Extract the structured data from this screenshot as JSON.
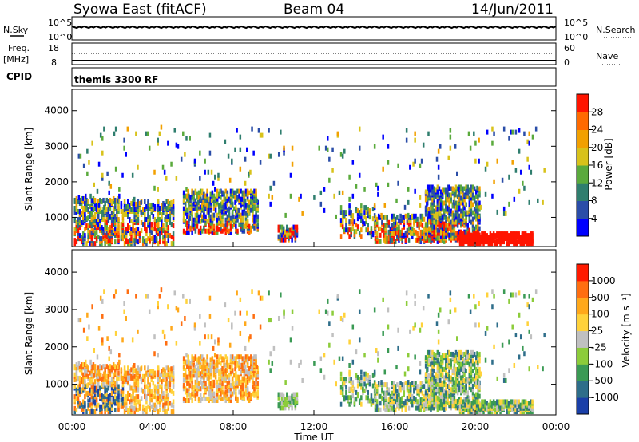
{
  "header": {
    "title": "Syowa East (fitACF)",
    "beam": "Beam 04",
    "date": "14/Jun/2011"
  },
  "panels": {
    "nsky_label": "N.Sky",
    "nsearch_label": "N.Search",
    "nsky_ticks": [
      "10^5",
      "10^0"
    ],
    "nsky_right_ticks": [
      "10^5",
      "10^0"
    ],
    "freq_label": "Freq.",
    "freq_unit": "[MHz]",
    "freq_ticks": [
      "18",
      "8"
    ],
    "nave_label": "Nave",
    "nave_ticks": [
      "60",
      "0"
    ],
    "cpid_label": "CPID",
    "cpid_value": "themis 3300 RF"
  },
  "chart_data": [
    {
      "type": "heatmap",
      "name": "power",
      "ylabel": "Slant Range [km]",
      "xlabel": "Time UT",
      "x_ticks": [
        "00:00",
        "04:00",
        "08:00",
        "12:00",
        "16:00",
        "20:00",
        "00:00"
      ],
      "xlim_hours": [
        0,
        24
      ],
      "y_ticks": [
        1000,
        2000,
        3000,
        4000
      ],
      "ylim_km": [
        180,
        4600
      ],
      "colorbar": {
        "label": "Power [dB]",
        "ticks": [
          "28",
          "24",
          "20",
          "16",
          "12",
          "8",
          "4"
        ],
        "colors": [
          "#0000ff",
          "#2a4da8",
          "#2f7e6e",
          "#5aaa3c",
          "#d8c21a",
          "#f2a000",
          "#ff6a00",
          "#ff1400"
        ]
      }
    },
    {
      "type": "heatmap",
      "name": "velocity",
      "ylabel": "Slant Range [km]",
      "xlabel": "Time UT",
      "x_ticks": [
        "00:00",
        "04:00",
        "08:00",
        "12:00",
        "16:00",
        "20:00",
        "00:00"
      ],
      "xlim_hours": [
        0,
        24
      ],
      "y_ticks": [
        1000,
        2000,
        3000,
        4000
      ],
      "ylim_km": [
        180,
        4600
      ],
      "colorbar": {
        "label": "Velocity [m s⁻¹]",
        "ticks": [
          "1000",
          "500",
          "100",
          "25",
          "-25",
          "-100",
          "-500",
          "-1000"
        ],
        "colors": [
          "#1a3fa8",
          "#2e6e8a",
          "#3a9a54",
          "#8ccc3a",
          "#c0c0c0",
          "#ffd23a",
          "#ffa81a",
          "#ff6e10",
          "#ff1a00"
        ]
      }
    }
  ]
}
